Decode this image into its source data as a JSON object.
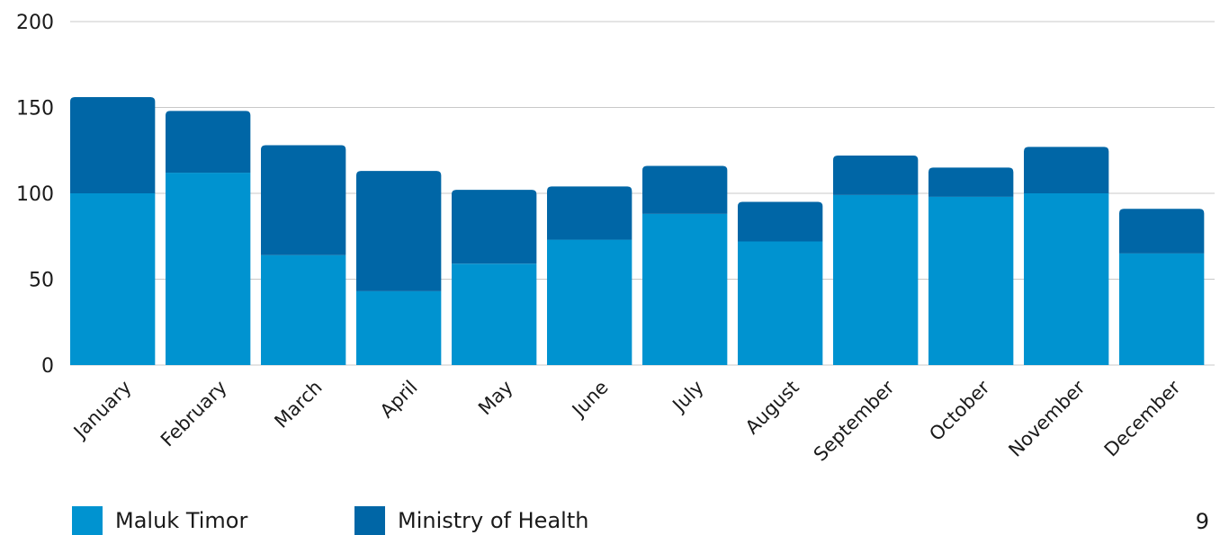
{
  "chart_data": {
    "type": "bar",
    "stacked": true,
    "categories": [
      "January",
      "February",
      "March",
      "April",
      "May",
      "June",
      "July",
      "August",
      "September",
      "October",
      "November",
      "December"
    ],
    "series": [
      {
        "name": "Maluk Timor",
        "color": "#0093d0",
        "values": [
          100,
          112,
          64,
          43,
          59,
          73,
          88,
          72,
          99,
          98,
          100,
          65
        ]
      },
      {
        "name": "Ministry of Health",
        "color": "#0066a6",
        "values": [
          56,
          36,
          64,
          70,
          43,
          31,
          28,
          23,
          23,
          17,
          27,
          26
        ]
      }
    ],
    "yticks": [
      0,
      50,
      100,
      150,
      200
    ],
    "ylim": [
      0,
      200
    ],
    "grid": true,
    "legend_position": "bottom-left",
    "title": "",
    "xlabel": "",
    "ylabel": ""
  },
  "page_number": "9"
}
